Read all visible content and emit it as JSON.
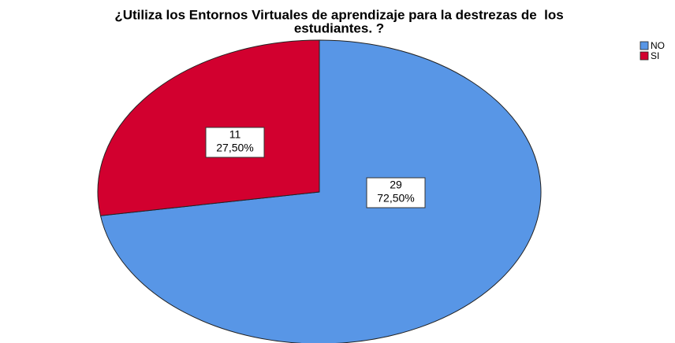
{
  "chart_data": {
    "type": "pie",
    "title": [
      "¿Utiliza los Entornos Virtuales de aprendizaje para la destrezas de  los",
      "estudiantes. ?"
    ],
    "categories": [
      "NO",
      "SI"
    ],
    "values": [
      29,
      11
    ],
    "percent_labels": [
      "72,50%",
      "27,50%"
    ],
    "colors": [
      "#5896e6",
      "#d2002f"
    ],
    "legend": "top-right"
  }
}
